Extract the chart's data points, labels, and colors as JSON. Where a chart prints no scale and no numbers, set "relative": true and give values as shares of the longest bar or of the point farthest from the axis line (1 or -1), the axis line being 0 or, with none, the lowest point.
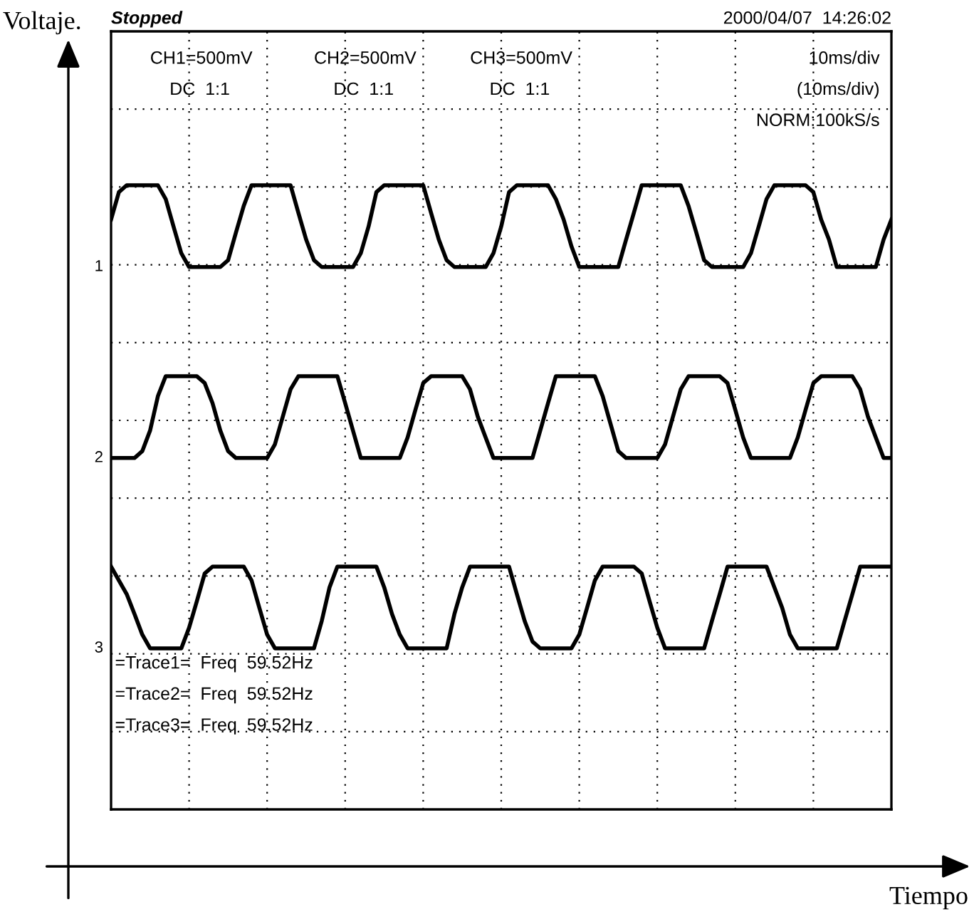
{
  "chart_data": {
    "type": "line",
    "relative": true,
    "grid": true,
    "legend": false,
    "marker": "none",
    "line_style": "solid",
    "categories": [
      null,
      null,
      null,
      null,
      null,
      null,
      null,
      null,
      null,
      null,
      null,
      null,
      null,
      null,
      null,
      null,
      null,
      null,
      null,
      null,
      null,
      null,
      null,
      null,
      null,
      null,
      null,
      null,
      null,
      null,
      null,
      null,
      null,
      null,
      null,
      null,
      null,
      null,
      null,
      null,
      null,
      null,
      null,
      null,
      null,
      null,
      null,
      null,
      null,
      null,
      null,
      null,
      null,
      null,
      null,
      null,
      null,
      null,
      null,
      null,
      null,
      null,
      null,
      null,
      null,
      null,
      null,
      null,
      null,
      null,
      null,
      null,
      null,
      null,
      null,
      null,
      null,
      null,
      null,
      null,
      null,
      null,
      null,
      null,
      null,
      null,
      null,
      null,
      null,
      null,
      null,
      null,
      null,
      null,
      null,
      null,
      null,
      null,
      null,
      null,
      null
    ],
    "annotations": [
      "Stopped",
      "2000/04/07  14:26:02",
      "CH1=500mV",
      "DC  1:1",
      "CH2=500mV",
      "DC  1:1",
      "CH3=500mV",
      "DC  1:1",
      "10ms/div",
      "(10ms/div)",
      "NORM:100kS/s",
      "=Trace1=  Freq  59.52Hz",
      "=Trace2=  Freq  59.52Hz",
      "=Trace3=  Freq  59.52Hz",
      "1",
      "2",
      "3",
      "Voltaje.",
      "Tiempo"
    ],
    "series": [
      {
        "color": "#000000",
        "values": [
          0.945,
          0.989,
          1,
          1,
          1,
          1,
          1,
          0.978,
          0.934,
          0.891,
          0.869,
          0.869,
          0.869,
          0.869,
          0.869,
          0.88,
          0.924,
          0.967,
          1,
          1,
          1,
          1,
          1,
          1,
          0.956,
          0.913,
          0.88,
          0.869,
          0.869,
          0.869,
          0.869,
          0.869,
          0.891,
          0.934,
          0.989,
          1,
          1,
          1,
          1,
          1,
          1,
          0.956,
          0.913,
          0.88,
          0.869,
          0.869,
          0.869,
          0.869,
          0.869,
          0.891,
          0.934,
          0.989,
          1,
          1,
          1,
          1,
          1,
          0.978,
          0.945,
          0.902,
          0.869,
          0.869,
          0.869,
          0.869,
          0.869,
          0.869,
          0.913,
          0.956,
          1,
          1,
          1,
          1,
          1,
          1,
          0.967,
          0.924,
          0.88,
          0.869,
          0.869,
          0.869,
          0.869,
          0.869,
          0.891,
          0.934,
          0.978,
          1,
          1,
          1,
          1,
          1,
          0.989,
          0.945,
          0.913,
          0.869,
          0.869,
          0.869,
          0.869,
          0.869,
          0.869,
          0.913,
          0.945
        ]
      },
      {
        "color": "#000000",
        "values": [
          0.563,
          0.563,
          0.563,
          0.563,
          0.574,
          0.607,
          0.662,
          0.694,
          0.694,
          0.694,
          0.694,
          0.694,
          0.683,
          0.651,
          0.607,
          0.574,
          0.563,
          0.563,
          0.563,
          0.563,
          0.563,
          0.585,
          0.629,
          0.673,
          0.694,
          0.694,
          0.694,
          0.694,
          0.694,
          0.694,
          0.651,
          0.607,
          0.563,
          0.563,
          0.563,
          0.563,
          0.563,
          0.563,
          0.596,
          0.64,
          0.683,
          0.694,
          0.694,
          0.694,
          0.694,
          0.694,
          0.673,
          0.629,
          0.596,
          0.563,
          0.563,
          0.563,
          0.563,
          0.563,
          0.563,
          0.607,
          0.651,
          0.694,
          0.694,
          0.694,
          0.694,
          0.694,
          0.694,
          0.662,
          0.618,
          0.574,
          0.563,
          0.563,
          0.563,
          0.563,
          0.563,
          0.585,
          0.629,
          0.673,
          0.694,
          0.694,
          0.694,
          0.694,
          0.694,
          0.683,
          0.64,
          0.596,
          0.563,
          0.563,
          0.563,
          0.563,
          0.563,
          0.563,
          0.596,
          0.64,
          0.683,
          0.694,
          0.694,
          0.694,
          0.694,
          0.694,
          0.673,
          0.629,
          0.596,
          0.563,
          0.563
        ]
      },
      {
        "color": "#000000",
        "values": [
          0.389,
          0.367,
          0.345,
          0.313,
          0.28,
          0.258,
          0.258,
          0.258,
          0.258,
          0.258,
          0.291,
          0.334,
          0.378,
          0.389,
          0.389,
          0.389,
          0.389,
          0.389,
          0.367,
          0.323,
          0.28,
          0.258,
          0.258,
          0.258,
          0.258,
          0.258,
          0.258,
          0.302,
          0.356,
          0.389,
          0.389,
          0.389,
          0.389,
          0.389,
          0.389,
          0.356,
          0.313,
          0.28,
          0.258,
          0.258,
          0.258,
          0.258,
          0.258,
          0.258,
          0.313,
          0.356,
          0.389,
          0.389,
          0.389,
          0.389,
          0.389,
          0.389,
          0.345,
          0.302,
          0.269,
          0.258,
          0.258,
          0.258,
          0.258,
          0.258,
          0.28,
          0.323,
          0.367,
          0.389,
          0.389,
          0.389,
          0.389,
          0.389,
          0.378,
          0.334,
          0.291,
          0.258,
          0.258,
          0.258,
          0.258,
          0.258,
          0.258,
          0.302,
          0.345,
          0.389,
          0.389,
          0.389,
          0.389,
          0.389,
          0.389,
          0.356,
          0.323,
          0.28,
          0.258,
          0.258,
          0.258,
          0.258,
          0.258,
          0.258,
          0.302,
          0.345,
          0.389,
          0.389,
          0.389,
          0.389,
          0.389
        ]
      }
    ]
  }
}
